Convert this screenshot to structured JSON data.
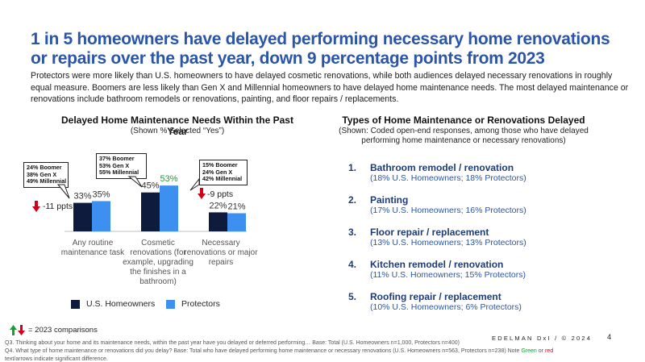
{
  "header": {
    "title": "1 in 5 homeowners have delayed performing necessary home renovations or repairs over the past year, down 9 percentage points from 2023",
    "subtitle": "Protectors were more likely than U.S. homeowners to have delayed cosmetic renovations, while both audiences delayed necessary renovations in roughly equal measure. Boomers are less likely than Gen X and Millennial homeowners to have delayed home maintenance needs. The most delayed maintenance or renovations include bathroom remodels or renovations, painting, and floor repairs / replacements."
  },
  "chart_data": {
    "type": "bar",
    "title": "Delayed Home Maintenance Needs Within the Past Year",
    "subtitle": "(Shown % Selected “Yes”)",
    "categories": [
      "Any routine maintenance task",
      "Cosmetic renovations (for example, upgrading the finishes in a bathroom)",
      "Necessary renovations or major repairs"
    ],
    "series": [
      {
        "name": "U.S. Homeowners",
        "color": "#0f1b3d",
        "values": [
          33,
          45,
          22
        ],
        "labels": [
          "33%",
          "45%",
          "22%"
        ],
        "label_colors": [
          "#333333",
          "#333333",
          "#333333"
        ]
      },
      {
        "name": "Protectors",
        "color": "#3d8ff0",
        "values": [
          35,
          53,
          21
        ],
        "labels": [
          "35%",
          "53%",
          "21%"
        ],
        "label_colors": [
          "#333333",
          "#1f9a3a",
          "#333333"
        ]
      }
    ],
    "ylim": [
      0,
      70
    ],
    "grid": false,
    "legend": "bottom",
    "annotations": {
      "callouts": [
        "24% Boomer\n38% Gen X\n49% Millennial",
        "37% Boomer\n53% Gen X\n55% Millennial",
        "15% Boomer\n24% Gen X\n42% Millennial"
      ],
      "significance": [
        "-11 ppts",
        "-9 ppts"
      ]
    }
  },
  "chart_xlabels": [
    "Any routine\nmaintenance task",
    "Cosmetic\nrenovations (for\nexample, upgrading\nthe finishes in a\nbathroom)",
    "Necessary\nrenovations or major\nrepairs"
  ],
  "types": {
    "title": "Types of Home Maintenance or Renovations Delayed",
    "subtitle": "(Shown: Coded open-end responses, among those who have delayed performing home maintenance or necessary renovations)",
    "items": [
      {
        "num": "1.",
        "name": "Bathroom remodel / renovation",
        "detail": "(18% U.S. Homeowners; 18% Protectors)"
      },
      {
        "num": "2.",
        "name": "Painting",
        "detail": "(17% U.S. Homeowners; 16% Protectors)"
      },
      {
        "num": "3.",
        "name": "Floor repair / replacement",
        "detail": "(13% U.S. Homeowners; 13% Protectors)"
      },
      {
        "num": "4.",
        "name": "Kitchen remodel / renovation",
        "detail": "(11% U.S. Homeowners; 15% Protectors)"
      },
      {
        "num": "5.",
        "name": "Roofing repair / replacement",
        "detail": "(10% U.S. Homeowners; 6% Protectors)"
      }
    ]
  },
  "footer": {
    "comparison_label": "= 2023 comparisons",
    "brand": "EDELMAN DxI / © 2024",
    "page": "4",
    "note_q3": "Q3. Thinking about your home and its maintenance needs, within the past year have you delayed or deferred performing… Base: Total (U.S. Homeowners n=1,000, Protectors n=400)",
    "note_q4_pre": "Q4. What type of home maintenance or renovations did you delay? Base: Total who have delayed performing home maintenance or necessary renovations (U.S. Homeowners n=563, Protectors n=238) Note",
    "note_green": "Green",
    "note_or": "or",
    "note_red": "red",
    "note_end": "text/arrows indicate significant difference."
  },
  "colors": {
    "title": "#2a55a8",
    "navy": "#0f1b3d",
    "blue": "#3d8ff0",
    "green": "#1f9a3a",
    "red": "#d0021b"
  }
}
